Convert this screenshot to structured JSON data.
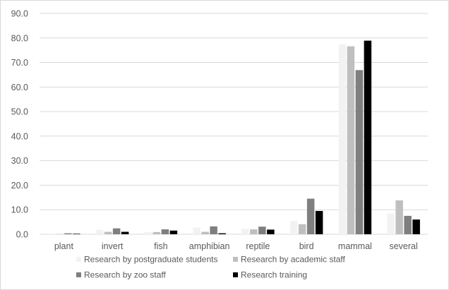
{
  "chart_data": {
    "type": "bar",
    "title": "",
    "xlabel": "",
    "ylabel": "",
    "ylim": [
      0,
      90
    ],
    "yticks": [
      "0.0",
      "10.0",
      "20.0",
      "30.0",
      "40.0",
      "50.0",
      "60.0",
      "70.0",
      "80.0",
      "90.0"
    ],
    "grid": true,
    "legend_position": "bottom",
    "categories": [
      "plant",
      "invert",
      "fish",
      "amphibian",
      "reptile",
      "bird",
      "mammal",
      "several"
    ],
    "series": [
      {
        "name": "Research by postgraduate students",
        "color": "#f2f2f2",
        "values": [
          0.1,
          1.8,
          0.9,
          2.7,
          2.2,
          5.4,
          77.4,
          8.5
        ]
      },
      {
        "name": "Research by academic staff",
        "color": "#bfbfbf",
        "values": [
          0.1,
          1.0,
          0.9,
          1.0,
          2.0,
          4.1,
          76.6,
          13.8
        ]
      },
      {
        "name": "Research by zoo staff",
        "color": "#7f7f7f",
        "values": [
          0.4,
          2.4,
          2.0,
          3.2,
          3.1,
          14.5,
          66.9,
          7.5
        ]
      },
      {
        "name": "Research training",
        "color": "#000000",
        "values": [
          0.2,
          1.0,
          1.5,
          0.4,
          1.9,
          9.5,
          78.9,
          6.0
        ]
      }
    ]
  }
}
